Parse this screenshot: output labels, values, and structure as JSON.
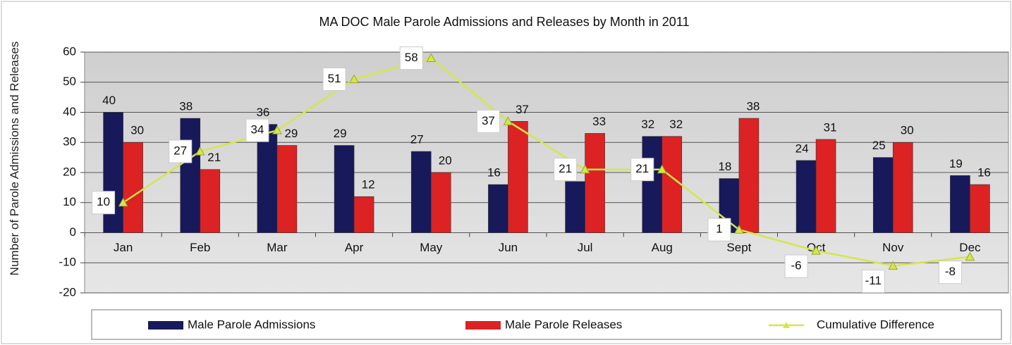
{
  "chart_data": {
    "type": "bar",
    "title": "MA DOC Male Parole Admissions and Releases by Month in 2011",
    "y_label": "Number of Parole Admissions and Releases",
    "categories": [
      "Jan",
      "Feb",
      "Mar",
      "Apr",
      "May",
      "Jun",
      "Jul",
      "Aug",
      "Sept",
      "Oct",
      "Nov",
      "Dec"
    ],
    "series": [
      {
        "name": "Male Parole Admissions",
        "type": "bar",
        "color": "#17195a",
        "values": [
          40,
          38,
          36,
          29,
          27,
          16,
          17,
          32,
          18,
          24,
          25,
          19
        ]
      },
      {
        "name": "Male Parole Releases",
        "type": "bar",
        "color": "#dc2222",
        "values": [
          30,
          21,
          29,
          12,
          20,
          37,
          33,
          32,
          38,
          31,
          30,
          16
        ]
      },
      {
        "name": "Cumulative Difference",
        "type": "line",
        "color": "#d6e64a",
        "values": [
          10,
          27,
          34,
          51,
          58,
          37,
          21,
          21,
          1,
          -6,
          -11,
          -8
        ]
      }
    ],
    "ylim": [
      -20,
      60
    ],
    "yticks": [
      -20,
      -10,
      0,
      10,
      20,
      30,
      40,
      50,
      60
    ],
    "grid": true,
    "legend": "bottom"
  }
}
